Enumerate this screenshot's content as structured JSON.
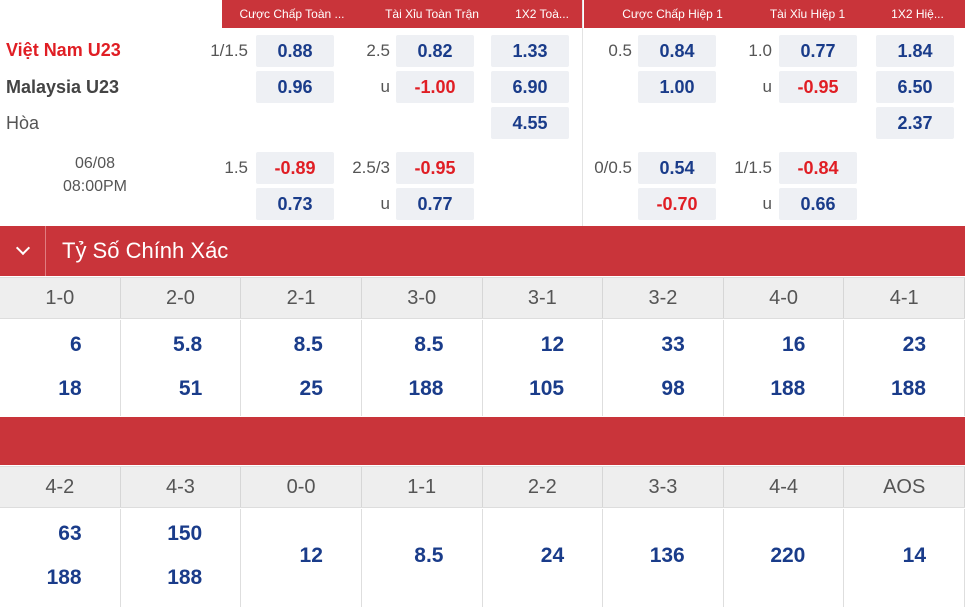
{
  "headers": {
    "full_hdp": "Cược Chấp Toàn ...",
    "full_ou": "Tài Xỉu Toàn Trận",
    "full_1x2": "1X2 Toà...",
    "half_hdp": "Cược Chấp Hiệp 1",
    "half_ou": "Tài Xỉu Hiệp 1",
    "half_1x2": "1X2 Hiệ..."
  },
  "match": {
    "home": "Việt Nam U23",
    "away": "Malaysia U23",
    "draw": "Hòa",
    "date": "06/08",
    "time": "08:00PM"
  },
  "main_line": {
    "hdp_line": "1/1.5",
    "hdp_home": "0.88",
    "hdp_away": "0.96",
    "ou_line": "2.5",
    "ou_over": "0.82",
    "ou_under_label": "u",
    "ou_under": "-1.00",
    "x12_home": "1.33",
    "x12_away": "6.90",
    "x12_draw": "4.55",
    "h_hdp_line": "0.5",
    "h_hdp_home": "0.84",
    "h_hdp_away": "1.00",
    "h_ou_line": "1.0",
    "h_ou_over": "0.77",
    "h_ou_under_label": "u",
    "h_ou_under": "-0.95",
    "h_x12_home": "1.84",
    "h_x12_away": "6.50",
    "h_x12_draw": "2.37"
  },
  "alt_line": {
    "hdp_line": "1.5",
    "hdp_home": "-0.89",
    "hdp_away": "0.73",
    "ou_line": "2.5/3",
    "ou_over": "-0.95",
    "ou_under_label": "u",
    "ou_under": "0.77",
    "h_hdp_line": "0/0.5",
    "h_hdp_home": "0.54",
    "h_hdp_away": "-0.70",
    "h_ou_line": "1/1.5",
    "h_ou_over": "-0.84",
    "h_ou_under_label": "u",
    "h_ou_under": "0.66"
  },
  "section": {
    "title": "Tỷ Số Chính Xác",
    "toggle_icon": "chevron-down-icon"
  },
  "scores_row1": [
    {
      "score": "1-0",
      "home": "6",
      "away": "18"
    },
    {
      "score": "2-0",
      "home": "5.8",
      "away": "51"
    },
    {
      "score": "2-1",
      "home": "8.5",
      "away": "25"
    },
    {
      "score": "3-0",
      "home": "8.5",
      "away": "188"
    },
    {
      "score": "3-1",
      "home": "12",
      "away": "105"
    },
    {
      "score": "3-2",
      "home": "33",
      "away": "98"
    },
    {
      "score": "4-0",
      "home": "16",
      "away": "188"
    },
    {
      "score": "4-1",
      "home": "23",
      "away": "188"
    }
  ],
  "scores_row2": [
    {
      "score": "4-2",
      "home": "63",
      "away": "188"
    },
    {
      "score": "4-3",
      "home": "150",
      "away": "188"
    },
    {
      "score": "0-0",
      "single": "12"
    },
    {
      "score": "1-1",
      "single": "8.5"
    },
    {
      "score": "2-2",
      "single": "24"
    },
    {
      "score": "3-3",
      "single": "136"
    },
    {
      "score": "4-4",
      "single": "220"
    },
    {
      "score": "AOS",
      "single": "14"
    }
  ],
  "colors": {
    "brand_red": "#c9343a",
    "odds_blue": "#1a3c8a",
    "negative_red": "#e01e24"
  }
}
